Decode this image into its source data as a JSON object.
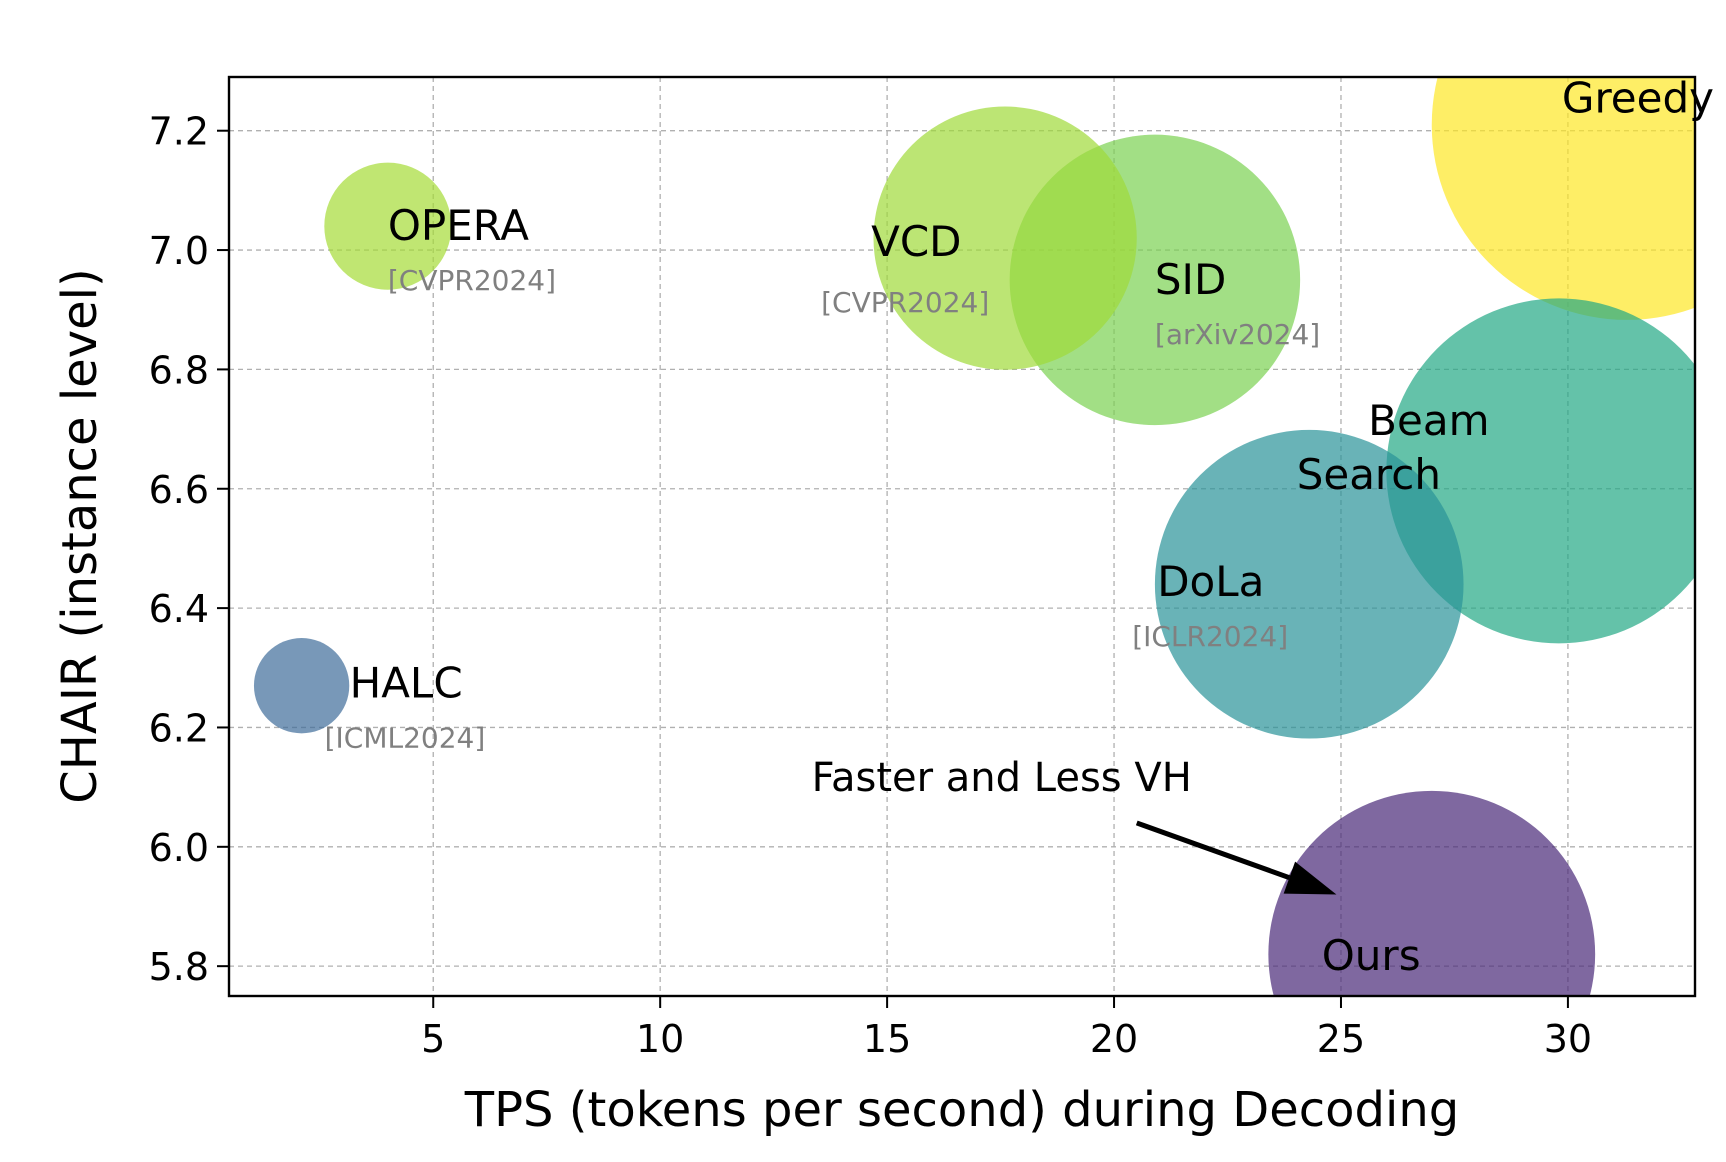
{
  "chart_data": {
    "type": "scatter",
    "xlabel": "TPS (tokens per second) during Decoding",
    "ylabel": "CHAIR (instance level)",
    "xlim": [
      0.5,
      32.8
    ],
    "ylim": [
      5.75,
      7.29
    ],
    "xticks": [
      5,
      10,
      15,
      20,
      25,
      30
    ],
    "yticks": [
      5.8,
      6.0,
      6.2,
      6.4,
      6.6,
      6.8,
      7.0,
      7.2
    ],
    "grid": true,
    "points": [
      {
        "name": "Greedy",
        "venue": "",
        "x": 31.3,
        "y": 7.21,
        "color": "#fde725",
        "radius_tps": 4.3
      },
      {
        "name": "Beam Search",
        "venue": "",
        "x": 29.8,
        "y": 6.63,
        "color": "#22a884",
        "radius_tps": 3.8
      },
      {
        "name": "SID",
        "venue": "[arXiv2024]",
        "x": 20.9,
        "y": 6.95,
        "color": "#7ad151",
        "radius_tps": 3.2
      },
      {
        "name": "VCD",
        "venue": "[CVPR2024]",
        "x": 17.6,
        "y": 7.02,
        "color": "#a0da39",
        "radius_tps": 2.9
      },
      {
        "name": "DoLa",
        "venue": "[ICLR2024]",
        "x": 24.3,
        "y": 6.44,
        "color": "#2a9399",
        "radius_tps": 3.4
      },
      {
        "name": "Ours",
        "venue": "",
        "x": 27.0,
        "y": 5.82,
        "color": "#482878",
        "radius_tps": 3.6
      },
      {
        "name": "OPERA",
        "venue": "[CVPR2024]",
        "x": 4.0,
        "y": 7.04,
        "color": "#a5db36",
        "radius_tps": 1.4
      },
      {
        "name": "HALC",
        "venue": "[ICML2024]",
        "x": 2.1,
        "y": 6.27,
        "color": "#3e6c9a",
        "radius_tps": 1.05
      }
    ],
    "annotation": {
      "text": "Faster and Less VH",
      "from": [
        20.5,
        6.04
      ],
      "to": [
        24.9,
        5.92
      ]
    }
  }
}
